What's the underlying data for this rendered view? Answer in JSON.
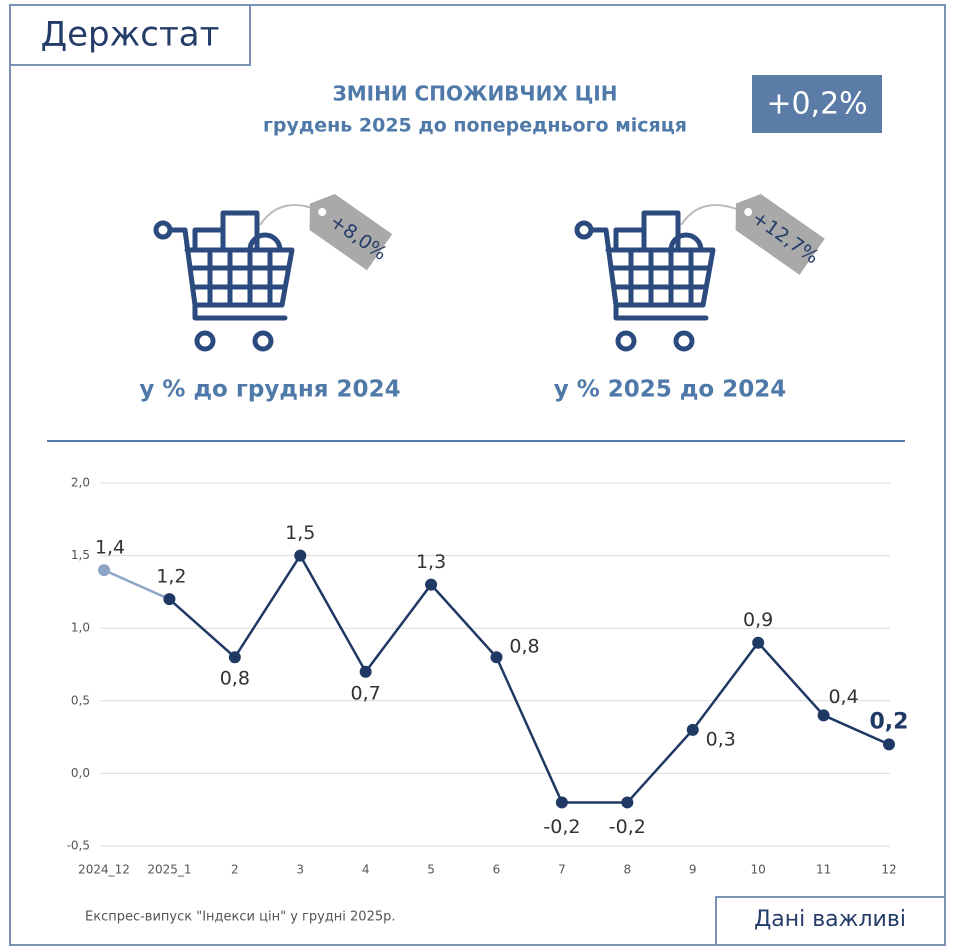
{
  "header": {
    "logo": "Держстат",
    "title": "ЗМІНИ СПОЖИВЧИХ ЦІН",
    "subtitle": "грудень 2025 до попереднього місяця",
    "badge": "+0,2%"
  },
  "cards": [
    {
      "tag": "+8,0%",
      "label": "у % до грудня 2024"
    },
    {
      "tag": "+12,7%",
      "label": "у % 2025 до 2024"
    }
  ],
  "chart_data": {
    "type": "line",
    "categories": [
      "2024_12",
      "2025_1",
      "2",
      "3",
      "4",
      "5",
      "6",
      "7",
      "8",
      "9",
      "10",
      "11",
      "12"
    ],
    "series": [
      {
        "color": "#1f3864",
        "values": [
          1.4,
          1.2,
          0.8,
          1.5,
          0.7,
          1.3,
          0.8,
          -0.2,
          -0.2,
          0.3,
          0.9,
          0.4,
          0.2
        ],
        "value_labels": [
          "1,4",
          "1,2",
          "0,8",
          "1,5",
          "0,7",
          "1,3",
          "0,8",
          "-0,2",
          "-0,2",
          "0,3",
          "0,9",
          "0,4",
          "0,2"
        ]
      }
    ],
    "ylim": [
      -0.5,
      2.0
    ],
    "yticks": [
      {
        "value": -0.5,
        "label": "-0,5"
      },
      {
        "value": 0,
        "label": "0,0"
      },
      {
        "value": 0.5,
        "label": "0,5"
      },
      {
        "value": 1.0,
        "label": "1,0"
      },
      {
        "value": 1.5,
        "label": "1,5"
      },
      {
        "value": 2.0,
        "label": "2,0"
      }
    ],
    "grid": true
  },
  "footer": {
    "note": "Експрес-випуск \"Індекси цін\" у грудні 2025р.",
    "button": "Дані важливі"
  }
}
